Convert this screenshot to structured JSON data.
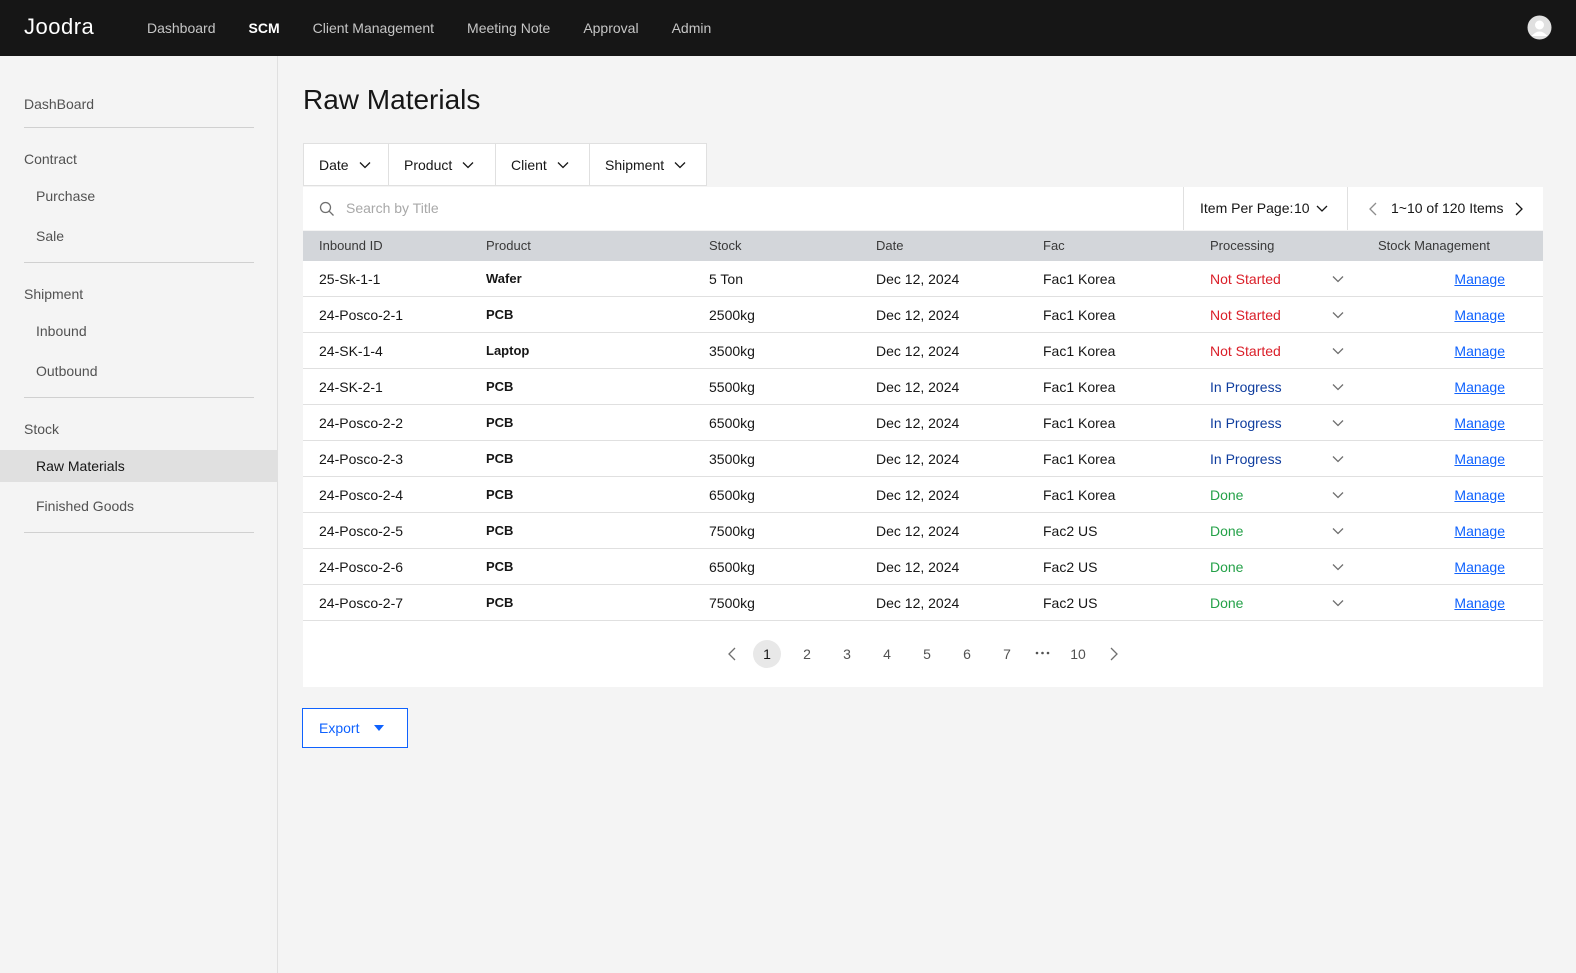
{
  "header": {
    "logo": "Joodra",
    "nav": [
      {
        "label": "Dashboard"
      },
      {
        "label": "SCM",
        "active": true
      },
      {
        "label": "Client Management"
      },
      {
        "label": "Meeting Note"
      },
      {
        "label": "Approval"
      },
      {
        "label": "Admin"
      }
    ]
  },
  "sidebar": {
    "groups": [
      {
        "title": "DashBoard",
        "children": []
      },
      {
        "title": "Contract",
        "children": [
          {
            "label": "Purchase"
          },
          {
            "label": "Sale"
          }
        ]
      },
      {
        "title": "Shipment",
        "children": [
          {
            "label": "Inbound"
          },
          {
            "label": "Outbound"
          }
        ]
      },
      {
        "title": "Stock",
        "children": [
          {
            "label": "Raw Materials",
            "active": true
          },
          {
            "label": "Finished Goods"
          }
        ]
      }
    ]
  },
  "page": {
    "title": "Raw Materials"
  },
  "filters": [
    "Date",
    "Product",
    "Client",
    "Shipment"
  ],
  "search": {
    "placeholder": "Search by Title"
  },
  "item_per_page": {
    "label": "Item Per Page:",
    "value": "10"
  },
  "range": "1~10 of 120 Items",
  "table": {
    "columns": [
      "Inbound ID",
      "Product",
      "Stock",
      "Date",
      "Fac",
      "Processing",
      "Stock Management"
    ],
    "rows": [
      [
        "25-Sk-1-1",
        "Wafer",
        "5 Ton",
        "Dec 12, 2024",
        "Fac1 Korea",
        "Not Started",
        "Manage"
      ],
      [
        "24-Posco-2-1",
        "PCB",
        "2500kg",
        "Dec 12, 2024",
        "Fac1 Korea",
        "Not Started",
        "Manage"
      ],
      [
        "24-SK-1-4",
        "Laptop",
        "3500kg",
        "Dec 12, 2024",
        "Fac1 Korea",
        "Not Started",
        "Manage"
      ],
      [
        "24-SK-2-1",
        "PCB",
        "5500kg",
        "Dec 12, 2024",
        "Fac1 Korea",
        "In Progress",
        "Manage"
      ],
      [
        "24-Posco-2-2",
        "PCB",
        "6500kg",
        "Dec 12, 2024",
        "Fac1 Korea",
        "In Progress",
        "Manage"
      ],
      [
        "24-Posco-2-3",
        "PCB",
        "3500kg",
        "Dec 12, 2024",
        "Fac1 Korea",
        "In Progress",
        "Manage"
      ],
      [
        "24-Posco-2-4",
        "PCB",
        "6500kg",
        "Dec 12, 2024",
        "Fac1 Korea",
        "Done",
        "Manage"
      ],
      [
        "24-Posco-2-5",
        "PCB",
        "7500kg",
        "Dec 12, 2024",
        "Fac2 US",
        "Done",
        "Manage"
      ],
      [
        "24-Posco-2-6",
        "PCB",
        "6500kg",
        "Dec 12, 2024",
        "Fac2 US",
        "Done",
        "Manage"
      ],
      [
        "24-Posco-2-7",
        "PCB",
        "7500kg",
        "Dec 12, 2024",
        "Fac2 US",
        "Done",
        "Manage"
      ]
    ],
    "processing_colors": {
      "Not Started": "#da1e28",
      "In Progress": "#0f3d9e",
      "Done": "#24a148"
    }
  },
  "pagination": {
    "pages": [
      "1",
      "2",
      "3",
      "4",
      "5",
      "6",
      "7",
      "10"
    ],
    "current": 0
  },
  "export": "Export"
}
